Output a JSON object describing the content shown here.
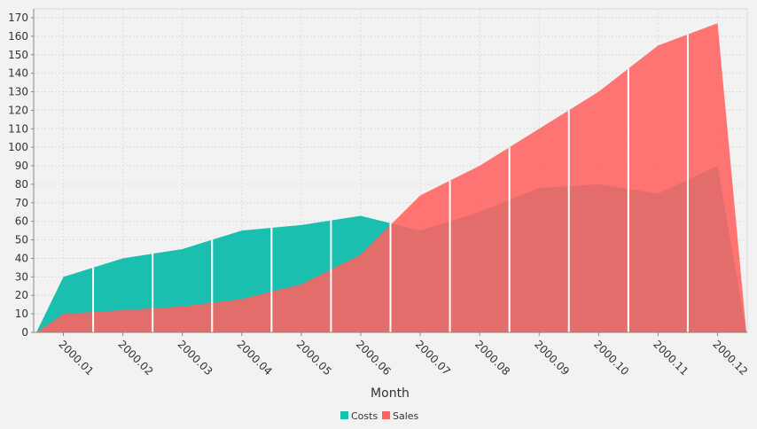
{
  "chart_data": {
    "type": "area",
    "title": "",
    "xlabel": "Month",
    "ylabel": "",
    "categories": [
      "2000.01",
      "2000.02",
      "2000.03",
      "2000.04",
      "2000.05",
      "2000.06",
      "2000.07",
      "2000.08",
      "2000.09",
      "2000.10",
      "2000.11",
      "2000.12"
    ],
    "series": [
      {
        "name": "Costs",
        "color": "#1abfb0",
        "values": [
          30,
          40,
          45,
          55,
          58,
          63,
          55,
          65,
          78,
          80,
          75,
          90
        ]
      },
      {
        "name": "Sales",
        "color": "#ff6260",
        "values": [
          10,
          12,
          14,
          18,
          26,
          42,
          74,
          90,
          110,
          130,
          155,
          167
        ]
      }
    ],
    "ylim": [
      0,
      170
    ],
    "yticks": [
      0,
      10,
      20,
      30,
      40,
      50,
      60,
      70,
      80,
      90,
      100,
      110,
      120,
      130,
      140,
      150,
      160,
      170
    ],
    "grid": true,
    "legend": "bottom-center"
  }
}
